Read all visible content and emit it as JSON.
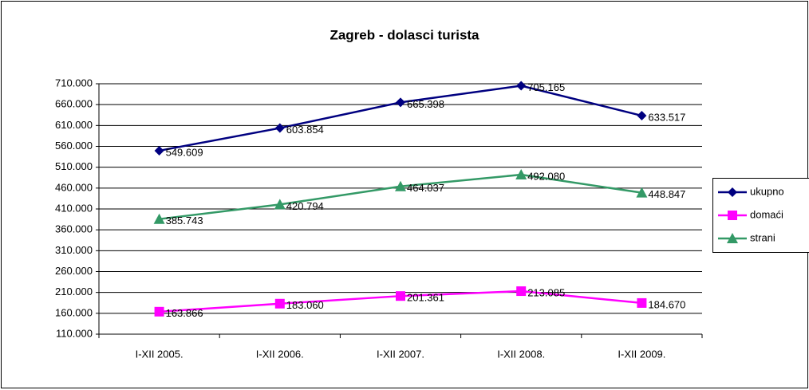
{
  "chart_data": {
    "type": "line",
    "title": "Zagreb - dolasci turista",
    "categories": [
      "I-XII 2005.",
      "I-XII 2006.",
      "I-XII 2007.",
      "I-XII 2008.",
      "I-XII 2009."
    ],
    "series": [
      {
        "name": "ukupno",
        "color": "#000080",
        "marker": "diamond",
        "values": [
          549609,
          603854,
          665398,
          705165,
          633517
        ],
        "value_labels": [
          "549.609",
          "603.854",
          "665.398",
          "705.165",
          "633.517"
        ]
      },
      {
        "name": "domaći",
        "color": "#ff00ff",
        "marker": "square",
        "values": [
          163866,
          183060,
          201361,
          213085,
          184670
        ],
        "value_labels": [
          "163.866",
          "183.060",
          "201.361",
          "213.085",
          "184.670"
        ]
      },
      {
        "name": "strani",
        "color": "#339966",
        "marker": "triangle",
        "values": [
          385743,
          420794,
          464037,
          492080,
          448847
        ],
        "value_labels": [
          "385.743",
          "420.794",
          "464.037",
          "492.080",
          "448.847"
        ]
      }
    ],
    "ylim": [
      110000,
      710000
    ],
    "yticks": [
      {
        "value": 110000,
        "label": "110.000"
      },
      {
        "value": 160000,
        "label": "160.000"
      },
      {
        "value": 210000,
        "label": "210.000"
      },
      {
        "value": 260000,
        "label": "260.000"
      },
      {
        "value": 310000,
        "label": "310.000"
      },
      {
        "value": 360000,
        "label": "360.000"
      },
      {
        "value": 410000,
        "label": "410.000"
      },
      {
        "value": 460000,
        "label": "460.000"
      },
      {
        "value": 510000,
        "label": "510.000"
      },
      {
        "value": 560000,
        "label": "560.000"
      },
      {
        "value": 610000,
        "label": "610.000"
      },
      {
        "value": 660000,
        "label": "660.000"
      },
      {
        "value": 710000,
        "label": "710.000"
      }
    ],
    "grid": true,
    "legend": "right"
  }
}
